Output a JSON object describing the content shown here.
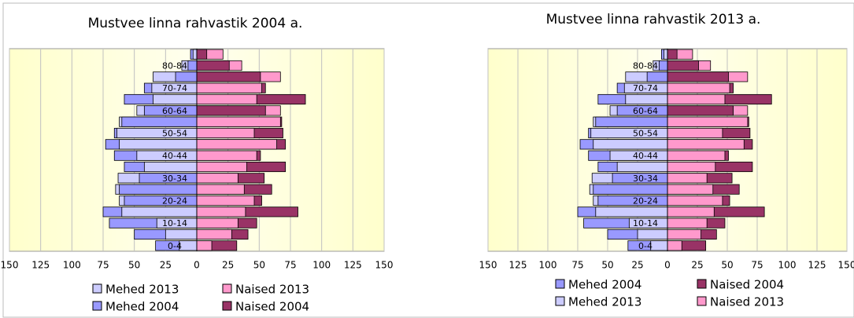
{
  "chart_data": [
    {
      "type": "bar",
      "orientation": "pyramid",
      "title": "Mustvee linna rahvastik 2004 a.",
      "categories": [
        "0-4",
        null,
        "10-14",
        null,
        "20-24",
        null,
        "30-34",
        null,
        "40-44",
        null,
        "50-54",
        null,
        "60-64",
        null,
        "70-74",
        null,
        "80-84",
        null
      ],
      "series": [
        {
          "name": "Mehed 2013",
          "color": "#ccccff",
          "side": "left",
          "values": [
            14,
            25,
            32,
            60,
            62,
            65,
            63,
            42,
            48,
            62,
            64,
            62,
            48,
            35,
            36,
            35,
            12,
            3
          ]
        },
        {
          "name": "Naised 2013",
          "color": "#ff99cc",
          "side": "right",
          "values": [
            12,
            28,
            33,
            39,
            46,
            38,
            33,
            40,
            48,
            64,
            46,
            67,
            67,
            48,
            52,
            67,
            36,
            21
          ]
        },
        {
          "name": "Mehed 2004",
          "color": "#9999ff",
          "side": "left",
          "values": [
            33,
            50,
            70,
            75,
            58,
            62,
            46,
            58,
            66,
            73,
            66,
            60,
            42,
            58,
            42,
            17,
            7,
            5
          ]
        },
        {
          "name": "Naised 2004",
          "color": "#993366",
          "side": "right",
          "values": [
            32,
            41,
            48,
            81,
            52,
            60,
            54,
            71,
            51,
            71,
            69,
            68,
            55,
            87,
            55,
            51,
            26,
            8
          ]
        }
      ],
      "xlim": [
        -150,
        150
      ],
      "xticks": [
        {
          "value": -150,
          "label": "150"
        },
        {
          "value": -125,
          "label": "125"
        },
        {
          "value": -100,
          "label": "100"
        },
        {
          "value": -75,
          "label": "75"
        },
        {
          "value": -50,
          "label": "50"
        },
        {
          "value": -25,
          "label": "25"
        },
        0,
        25,
        50,
        75,
        100,
        125,
        150
      ],
      "grid": true
    },
    {
      "type": "bar",
      "orientation": "pyramid",
      "title": "Mustvee linna rahvastik 2013 a.",
      "categories": [
        "0-4",
        null,
        "10-14",
        null,
        "20-24",
        null,
        "30-34",
        null,
        "40-44",
        null,
        "50-54",
        null,
        "60-64",
        null,
        "70-74",
        null,
        "80-84",
        null
      ],
      "series": [
        {
          "name": "Mehed 2004",
          "color": "#9999ff",
          "side": "left",
          "values": [
            33,
            50,
            70,
            75,
            58,
            62,
            46,
            58,
            66,
            73,
            66,
            60,
            42,
            58,
            42,
            17,
            7,
            5
          ]
        },
        {
          "name": "Naised 2004",
          "color": "#993366",
          "side": "right",
          "values": [
            32,
            41,
            48,
            81,
            52,
            60,
            54,
            71,
            51,
            71,
            69,
            68,
            55,
            87,
            55,
            51,
            26,
            8
          ]
        },
        {
          "name": "Mehed 2013",
          "color": "#ccccff",
          "side": "left",
          "values": [
            14,
            25,
            32,
            60,
            62,
            65,
            63,
            42,
            48,
            62,
            64,
            62,
            48,
            35,
            36,
            35,
            12,
            3
          ]
        },
        {
          "name": "Naised 2013",
          "color": "#ff99cc",
          "side": "right",
          "values": [
            12,
            28,
            33,
            39,
            46,
            38,
            33,
            40,
            48,
            64,
            46,
            67,
            67,
            48,
            52,
            67,
            36,
            21
          ]
        }
      ],
      "xlim": [
        -150,
        150
      ],
      "xticks": [
        {
          "value": -150,
          "label": "150"
        },
        {
          "value": -125,
          "label": "125"
        },
        {
          "value": -100,
          "label": "100"
        },
        {
          "value": -75,
          "label": "75"
        },
        {
          "value": -50,
          "label": "50"
        },
        {
          "value": -25,
          "label": "25"
        },
        0,
        25,
        50,
        75,
        100,
        125,
        150
      ],
      "grid": true
    }
  ]
}
